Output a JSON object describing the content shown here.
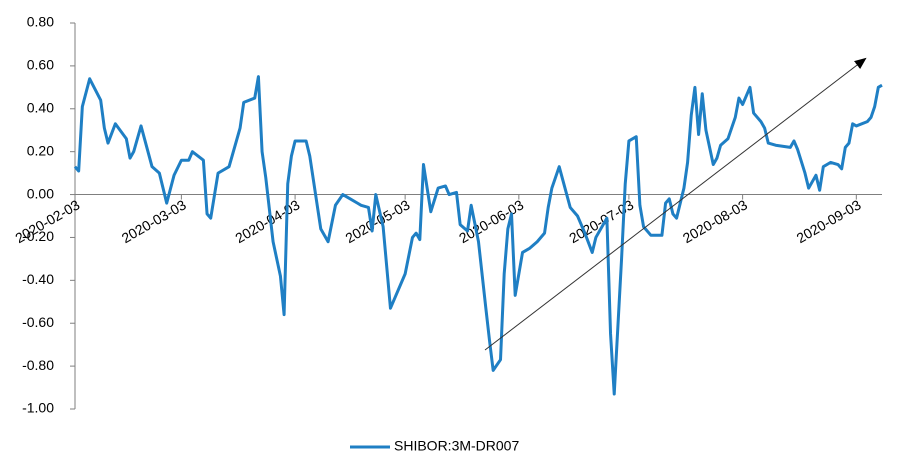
{
  "chart_data": {
    "type": "line",
    "x": [
      "2020-02-03",
      "2020-02-04",
      "2020-02-05",
      "2020-02-07",
      "2020-02-10",
      "2020-02-11",
      "2020-02-12",
      "2020-02-14",
      "2020-02-17",
      "2020-02-18",
      "2020-02-19",
      "2020-02-21",
      "2020-02-24",
      "2020-02-26",
      "2020-02-28",
      "2020-03-01",
      "2020-03-03",
      "2020-03-05",
      "2020-03-06",
      "2020-03-09",
      "2020-03-10",
      "2020-03-11",
      "2020-03-13",
      "2020-03-16",
      "2020-03-19",
      "2020-03-20",
      "2020-03-23",
      "2020-03-24",
      "2020-03-25",
      "2020-03-26",
      "2020-03-28",
      "2020-03-30",
      "2020-03-31",
      "2020-04-01",
      "2020-04-02",
      "2020-04-03",
      "2020-04-06",
      "2020-04-07",
      "2020-04-10",
      "2020-04-12",
      "2020-04-14",
      "2020-04-16",
      "2020-04-18",
      "2020-04-20",
      "2020-04-21",
      "2020-04-23",
      "2020-04-24",
      "2020-04-25",
      "2020-04-27",
      "2020-04-29",
      "2020-05-03",
      "2020-05-05",
      "2020-05-06",
      "2020-05-07",
      "2020-05-08",
      "2020-05-10",
      "2020-05-12",
      "2020-05-14",
      "2020-05-15",
      "2020-05-17",
      "2020-05-18",
      "2020-05-20",
      "2020-05-21",
      "2020-05-23",
      "2020-05-25",
      "2020-05-26",
      "2020-05-27",
      "2020-05-29",
      "2020-05-30",
      "2020-05-31",
      "2020-06-01",
      "2020-06-02",
      "2020-06-04",
      "2020-06-06",
      "2020-06-08",
      "2020-06-10",
      "2020-06-11",
      "2020-06-12",
      "2020-06-14",
      "2020-06-17",
      "2020-06-19",
      "2020-06-21",
      "2020-06-23",
      "2020-06-24",
      "2020-06-27",
      "2020-06-28",
      "2020-06-29",
      "2020-07-01",
      "2020-07-02",
      "2020-07-03",
      "2020-07-05",
      "2020-07-06",
      "2020-07-07",
      "2020-07-09",
      "2020-07-12",
      "2020-07-13",
      "2020-07-14",
      "2020-07-15",
      "2020-07-16",
      "2020-07-18",
      "2020-07-19",
      "2020-07-20",
      "2020-07-21",
      "2020-07-22",
      "2020-07-23",
      "2020-07-24",
      "2020-07-26",
      "2020-07-27",
      "2020-07-28",
      "2020-07-30",
      "2020-08-01",
      "2020-08-02",
      "2020-08-03",
      "2020-08-05",
      "2020-08-06",
      "2020-08-08",
      "2020-08-09",
      "2020-08-10",
      "2020-08-12",
      "2020-08-16",
      "2020-08-17",
      "2020-08-18",
      "2020-08-20",
      "2020-08-21",
      "2020-08-22",
      "2020-08-23",
      "2020-08-24",
      "2020-08-25",
      "2020-08-27",
      "2020-08-29",
      "2020-08-30",
      "2020-08-31",
      "2020-09-01",
      "2020-09-02",
      "2020-09-03",
      "2020-09-06",
      "2020-09-07",
      "2020-09-08",
      "2020-09-09",
      "2020-09-10"
    ],
    "series": [
      {
        "name": "SHIBOR:3M-DR007",
        "color": "#1f7fc4",
        "values": [
          0.13,
          0.11,
          0.41,
          0.54,
          0.44,
          0.31,
          0.24,
          0.33,
          0.26,
          0.17,
          0.2,
          0.32,
          0.13,
          0.1,
          -0.04,
          0.09,
          0.16,
          0.16,
          0.2,
          0.16,
          -0.09,
          -0.11,
          0.1,
          0.13,
          0.31,
          0.43,
          0.45,
          0.55,
          0.2,
          0.08,
          -0.22,
          -0.38,
          -0.56,
          0.05,
          0.18,
          0.25,
          0.25,
          0.18,
          -0.16,
          -0.22,
          -0.05,
          0.0,
          -0.02,
          -0.04,
          -0.05,
          -0.06,
          -0.17,
          0.0,
          -0.15,
          -0.53,
          -0.37,
          -0.2,
          -0.18,
          -0.21,
          0.14,
          -0.08,
          0.03,
          0.04,
          0.0,
          0.01,
          -0.14,
          -0.17,
          -0.05,
          -0.22,
          -0.53,
          -0.68,
          -0.82,
          -0.77,
          -0.37,
          -0.16,
          -0.09,
          -0.47,
          -0.27,
          -0.25,
          -0.22,
          -0.18,
          -0.06,
          0.03,
          0.13,
          -0.06,
          -0.1,
          -0.18,
          -0.27,
          -0.2,
          -0.11,
          -0.65,
          -0.93,
          -0.3,
          0.05,
          0.25,
          0.27,
          -0.05,
          -0.15,
          -0.19,
          -0.19,
          -0.04,
          -0.02,
          -0.09,
          -0.11,
          0.03,
          0.15,
          0.37,
          0.5,
          0.28,
          0.47,
          0.3,
          0.14,
          0.17,
          0.23,
          0.26,
          0.36,
          0.45,
          0.42,
          0.5,
          0.38,
          0.34,
          0.31,
          0.24,
          0.23,
          0.22,
          0.25,
          0.21,
          0.1,
          0.03,
          0.06,
          0.09,
          0.02,
          0.13,
          0.15,
          0.14,
          0.12,
          0.22,
          0.24,
          0.33,
          0.32,
          0.34,
          0.36,
          0.41,
          0.5,
          0.51
        ]
      }
    ],
    "xlim": [
      "2020-02-03",
      "2020-09-10"
    ],
    "xticks": [
      "2020-02-03",
      "2020-03-03",
      "2020-04-03",
      "2020-05-03",
      "2020-06-03",
      "2020-07-03",
      "2020-08-03",
      "2020-09-03"
    ],
    "ylim": [
      -1.0,
      0.8
    ],
    "yticks": [
      {
        "value": -1.0,
        "label": "-1.00"
      },
      {
        "value": -0.8,
        "label": "-0.80"
      },
      {
        "value": -0.6,
        "label": "-0.60"
      },
      {
        "value": -0.4,
        "label": "-0.40"
      },
      {
        "value": -0.2,
        "label": "-0.20"
      },
      {
        "value": 0,
        "label": "0.00"
      },
      {
        "value": 0.2,
        "label": "0.20"
      },
      {
        "value": 0.4,
        "label": "0.40"
      },
      {
        "value": 0.6,
        "label": "0.60"
      },
      {
        "value": 0.8,
        "label": "0.80"
      }
    ],
    "grid": false,
    "legend": "bottom"
  }
}
